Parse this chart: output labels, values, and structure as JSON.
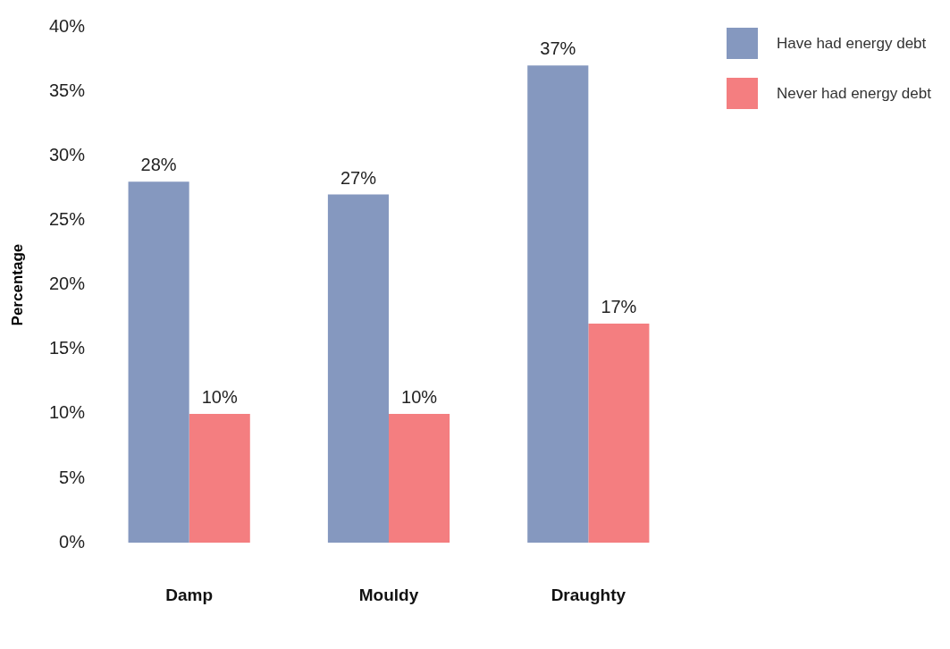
{
  "chart_data": {
    "type": "bar",
    "ylabel": "Percentage",
    "categories": [
      "Damp",
      "Mouldy",
      "Draughty"
    ],
    "series": [
      {
        "name": "Have had energy debt",
        "color": "#8598bf",
        "values": [
          28,
          27,
          37
        ],
        "value_labels": [
          "28%",
          "27%",
          "37%"
        ]
      },
      {
        "name": "Never had energy debt",
        "color": "#f47e80",
        "values": [
          10,
          10,
          17
        ],
        "value_labels": [
          "10%",
          "10%",
          "17%"
        ]
      }
    ],
    "ylim": [
      0,
      40
    ],
    "yticks": [
      {
        "value": 0,
        "label": "0%"
      },
      {
        "value": 5,
        "label": "5%"
      },
      {
        "value": 10,
        "label": "10%"
      },
      {
        "value": 15,
        "label": "15%"
      },
      {
        "value": 20,
        "label": "20%"
      },
      {
        "value": 25,
        "label": "25%"
      },
      {
        "value": 30,
        "label": "30%"
      },
      {
        "value": 35,
        "label": "35%"
      },
      {
        "value": 40,
        "label": "40%"
      }
    ],
    "grid": false,
    "legend": "top right"
  }
}
